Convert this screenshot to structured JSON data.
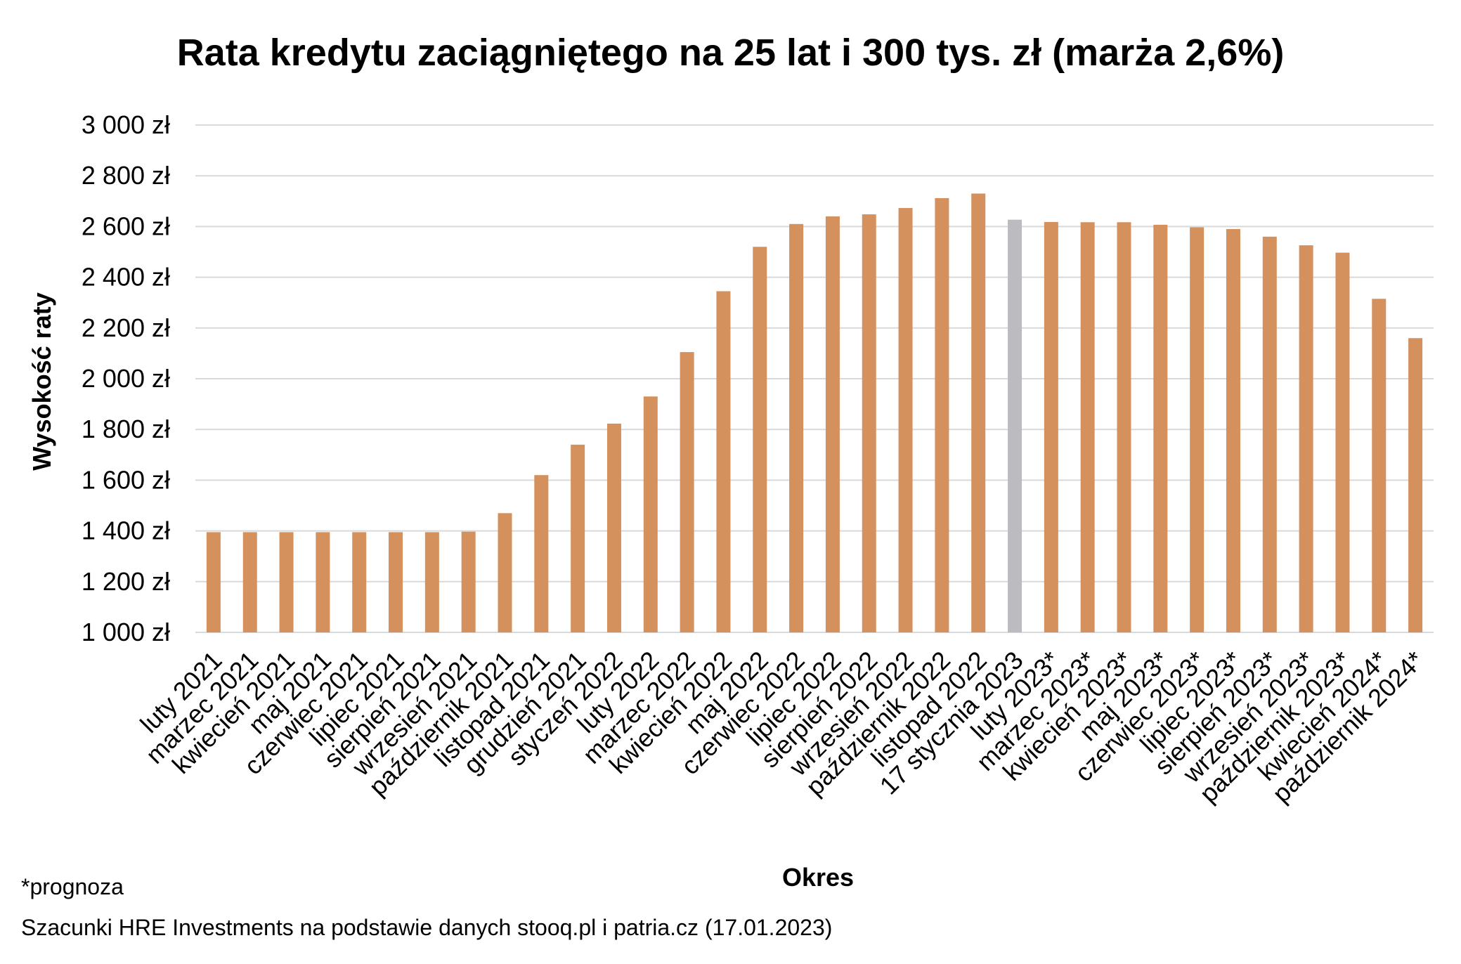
{
  "chart_data": {
    "type": "bar",
    "title": "Rata kredytu zaciągniętego na 25 lat i 300 tys. zł (marża 2,6%)",
    "xlabel": "Okres",
    "ylabel": "Wysokość raty",
    "ylim": [
      1000,
      3000
    ],
    "yticks": [
      1000,
      1200,
      1400,
      1600,
      1800,
      2000,
      2200,
      2400,
      2600,
      2800,
      3000
    ],
    "ytick_labels": [
      "1 000 zł",
      "1 200 zł",
      "1 400 zł",
      "1 600 zł",
      "1 800 zł",
      "2 000 zł",
      "2 200 zł",
      "2 400 zł",
      "2 600 zł",
      "2 800 zł",
      "3 000 zł"
    ],
    "grid": true,
    "categories": [
      "luty 2021",
      "marzec 2021",
      "kwiecień 2021",
      "maj 2021",
      "czerwiec 2021",
      "lipiec 2021",
      "sierpień 2021",
      "wrzesień 2021",
      "październik 2021",
      "listopad 2021",
      "grudzień 2021",
      "styczeń 2022",
      "luty 2022",
      "marzec 2022",
      "kwiecień 2022",
      "maj 2022",
      "czerwiec 2022",
      "lipiec 2022",
      "sierpień 2022",
      "wrzesień 2022",
      "październik 2022",
      "listopad 2022",
      "17 stycznia 2023",
      "luty 2023*",
      "marzec 2023*",
      "kwiecień 2023*",
      "maj 2023*",
      "czerwiec 2023*",
      "lipiec 2023*",
      "sierpień 2023*",
      "wrzesień 2023*",
      "październik 2023*",
      "kwiecień 2024*",
      "październik 2024*"
    ],
    "values": [
      1395,
      1395,
      1395,
      1395,
      1395,
      1395,
      1395,
      1397,
      1470,
      1620,
      1740,
      1823,
      1930,
      2105,
      2345,
      2520,
      2610,
      2640,
      2648,
      2673,
      2712,
      2730,
      2627,
      2618,
      2617,
      2617,
      2607,
      2597,
      2590,
      2560,
      2526,
      2497,
      2315,
      2160
    ],
    "highlight_index": 22,
    "colors": {
      "bar": "#D4915E",
      "highlight": "#BDBBC2",
      "grid": "#D9D9D9"
    }
  },
  "footnote": "*prognoza",
  "source": "Szacunki HRE Investments na podstawie danych stooq.pl i patria.cz (17.01.2023)"
}
